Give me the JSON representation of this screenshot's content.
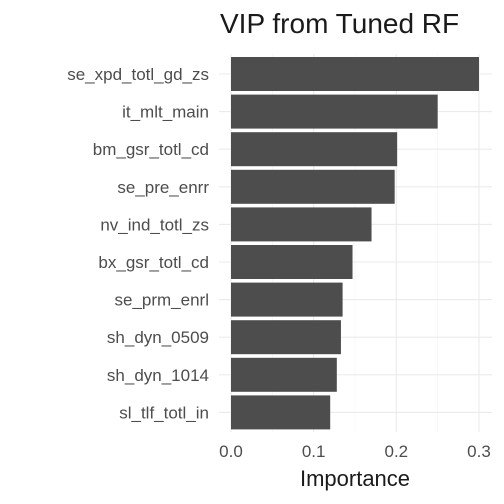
{
  "chart_data": {
    "type": "bar",
    "orientation": "horizontal",
    "title": "VIP from Tuned RF",
    "xlabel": "Importance",
    "ylabel": "",
    "xlim": [
      0,
      0.3
    ],
    "x_ticks": [
      "0.0",
      "0.1",
      "0.2",
      "0.3"
    ],
    "grid": true,
    "categories": [
      "se_xpd_totl_gd_zs",
      "it_mlt_main",
      "bm_gsr_totl_cd",
      "se_pre_enrr",
      "nv_ind_totl_zs",
      "bx_gsr_totl_cd",
      "se_prm_enrl",
      "sh_dyn_0509",
      "sh_dyn_1014",
      "sl_tlf_totl_in"
    ],
    "values": [
      0.3,
      0.25,
      0.201,
      0.198,
      0.17,
      0.147,
      0.135,
      0.133,
      0.128,
      0.12
    ],
    "bar_color": "#4d4d4d"
  }
}
